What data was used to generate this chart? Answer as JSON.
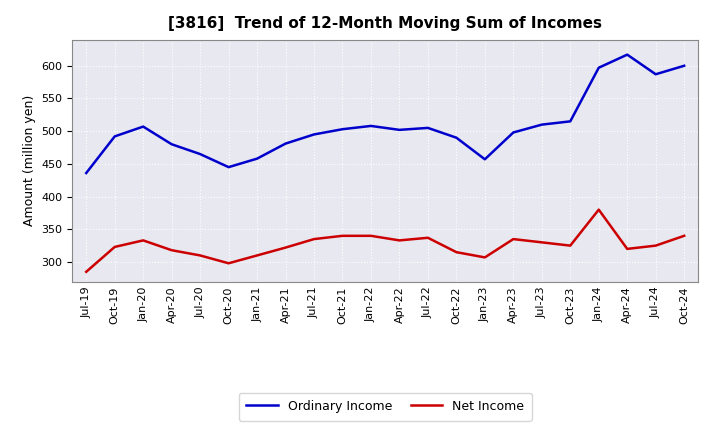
{
  "title": "[3816]  Trend of 12-Month Moving Sum of Incomes",
  "ylabel": "Amount (million yen)",
  "background_color": "#ffffff",
  "plot_bg_color": "#e8e8f0",
  "grid_color": "#ffffff",
  "ylim": [
    270,
    640
  ],
  "yticks": [
    300,
    350,
    400,
    450,
    500,
    550,
    600
  ],
  "x_labels": [
    "Jul-19",
    "Oct-19",
    "Jan-20",
    "Apr-20",
    "Jul-20",
    "Oct-20",
    "Jan-21",
    "Apr-21",
    "Jul-21",
    "Oct-21",
    "Jan-22",
    "Apr-22",
    "Jul-22",
    "Oct-22",
    "Jan-23",
    "Apr-23",
    "Jul-23",
    "Oct-23",
    "Jan-24",
    "Apr-24",
    "Jul-24",
    "Oct-24"
  ],
  "ordinary_income": [
    436,
    492,
    507,
    480,
    465,
    445,
    458,
    481,
    495,
    503,
    508,
    502,
    505,
    490,
    457,
    498,
    510,
    515,
    597,
    617,
    587,
    600
  ],
  "net_income": [
    285,
    323,
    333,
    318,
    310,
    298,
    310,
    322,
    335,
    340,
    340,
    333,
    337,
    315,
    307,
    335,
    330,
    325,
    380,
    320,
    325,
    340
  ],
  "ordinary_color": "#0000cc",
  "net_color": "#cc0000",
  "line_width": 1.8,
  "title_fontsize": 11,
  "ylabel_fontsize": 9,
  "tick_fontsize": 8,
  "legend_fontsize": 9
}
